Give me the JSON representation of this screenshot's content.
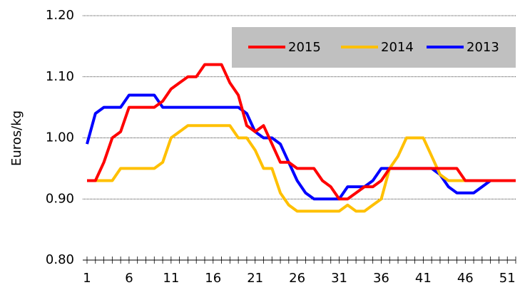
{
  "chart_data": {
    "type": "line",
    "y_label": "Euros/kg",
    "x": [
      1,
      2,
      3,
      4,
      5,
      6,
      7,
      8,
      9,
      10,
      11,
      12,
      13,
      14,
      15,
      16,
      17,
      18,
      19,
      20,
      21,
      22,
      23,
      24,
      25,
      26,
      27,
      28,
      29,
      30,
      31,
      32,
      33,
      34,
      35,
      36,
      37,
      38,
      39,
      40,
      41,
      42,
      43,
      44,
      45,
      46,
      47,
      48,
      49,
      50,
      51,
      52
    ],
    "xlim": [
      1,
      52
    ],
    "xticks": [
      1,
      6,
      11,
      16,
      21,
      26,
      31,
      36,
      41,
      46,
      51
    ],
    "ylim": [
      0.8,
      1.2
    ],
    "yticks": [
      {
        "value": 0.8,
        "label": "0.80"
      },
      {
        "value": 0.9,
        "label": "0.90"
      },
      {
        "value": 1.0,
        "label": "1.00"
      },
      {
        "value": 1.1,
        "label": "1.10"
      },
      {
        "value": 1.2,
        "label": "1.20"
      }
    ],
    "grid": true,
    "legend_position": "top-right",
    "series": [
      {
        "name": "2015",
        "color": "#ff0000",
        "values": [
          0.93,
          0.93,
          0.96,
          1.0,
          1.01,
          1.05,
          1.05,
          1.05,
          1.05,
          1.06,
          1.08,
          1.09,
          1.1,
          1.1,
          1.12,
          1.12,
          1.12,
          1.09,
          1.07,
          1.02,
          1.01,
          1.02,
          0.99,
          0.96,
          0.96,
          0.95,
          0.95,
          0.95,
          0.93,
          0.92,
          0.9,
          0.9,
          0.91,
          0.92,
          0.92,
          0.93,
          0.95,
          0.95,
          0.95,
          0.95,
          0.95,
          0.95,
          0.95,
          0.95,
          0.95,
          0.93,
          0.93,
          0.93,
          0.93,
          0.93,
          0.93,
          0.93
        ]
      },
      {
        "name": "2014",
        "color": "#ffc000",
        "values": [
          0.93,
          0.93,
          0.93,
          0.93,
          0.95,
          0.95,
          0.95,
          0.95,
          0.95,
          0.96,
          1.0,
          1.01,
          1.02,
          1.02,
          1.02,
          1.02,
          1.02,
          1.02,
          1.0,
          1.0,
          0.98,
          0.95,
          0.95,
          0.91,
          0.89,
          0.88,
          0.88,
          0.88,
          0.88,
          0.88,
          0.88,
          0.89,
          0.88,
          0.88,
          0.89,
          0.9,
          0.95,
          0.97,
          1.0,
          1.0,
          1.0,
          0.97,
          0.94,
          0.93,
          0.93,
          0.93,
          0.93,
          0.93,
          0.93,
          0.93,
          0.93,
          0.93
        ]
      },
      {
        "name": "2013",
        "color": "#0000ff",
        "values": [
          0.99,
          1.04,
          1.05,
          1.05,
          1.05,
          1.07,
          1.07,
          1.07,
          1.07,
          1.05,
          1.05,
          1.05,
          1.05,
          1.05,
          1.05,
          1.05,
          1.05,
          1.05,
          1.05,
          1.04,
          1.01,
          1.0,
          1.0,
          0.99,
          0.96,
          0.93,
          0.91,
          0.9,
          0.9,
          0.9,
          0.9,
          0.92,
          0.92,
          0.92,
          0.93,
          0.95,
          0.95,
          0.95,
          0.95,
          0.95,
          0.95,
          0.95,
          0.94,
          0.92,
          0.91,
          0.91,
          0.91,
          0.92,
          0.93,
          0.93,
          0.93,
          0.93
        ]
      }
    ]
  }
}
